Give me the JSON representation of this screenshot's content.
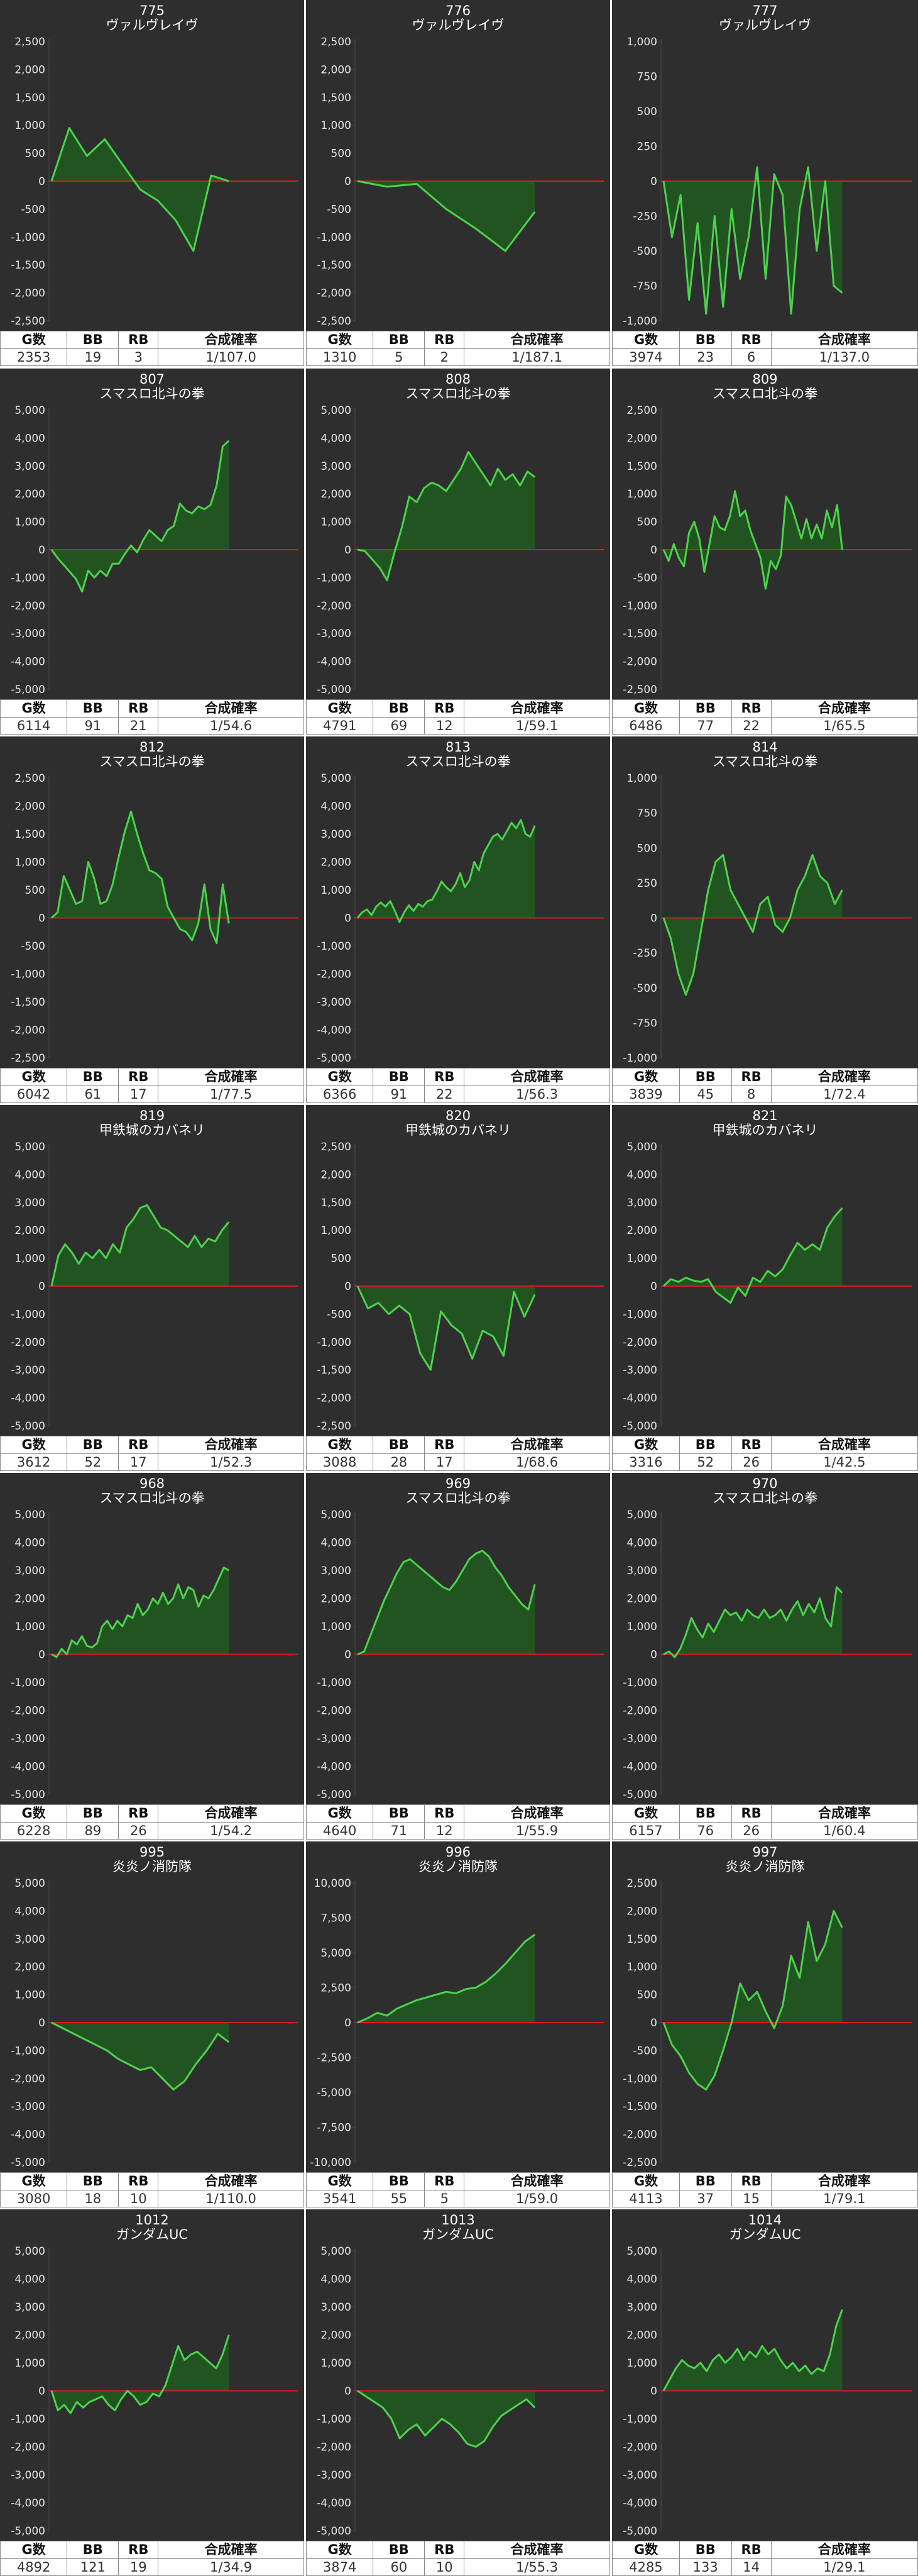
{
  "labels": {
    "games": "G数",
    "bb": "BB",
    "rb": "RB",
    "rate": "合成確率"
  },
  "colors": {
    "background": "#2e2e2e",
    "line": "#4cd24c",
    "fill": "#1f5a1f",
    "zero_line": "#d21e1e",
    "grid": "#4a4a4a",
    "text": "#ffffff"
  },
  "chart_data": [
    {
      "type": "area",
      "number": "775",
      "name": "ヴァルヴレイヴ",
      "ylim": [
        -2500,
        2500
      ],
      "step": 500,
      "stats": {
        "games": "2353",
        "bb": "19",
        "rb": "3",
        "rate": "1/107.0"
      },
      "y": [
        0,
        950,
        450,
        750,
        300,
        -150,
        -350,
        -700,
        -1250,
        100,
        0
      ]
    },
    {
      "type": "area",
      "number": "776",
      "name": "ヴァルヴレイヴ",
      "ylim": [
        -2500,
        2500
      ],
      "step": 500,
      "stats": {
        "games": "1310",
        "bb": "5",
        "rb": "2",
        "rate": "1/187.1"
      },
      "y": [
        0,
        -100,
        -50,
        -500,
        -850,
        -1250,
        -550
      ]
    },
    {
      "type": "area",
      "number": "777",
      "name": "ヴァルヴレイヴ",
      "ylim": [
        -1000,
        1000
      ],
      "step": 250,
      "stats": {
        "games": "3974",
        "bb": "23",
        "rb": "6",
        "rate": "1/137.0"
      },
      "y": [
        0,
        -400,
        -100,
        -850,
        -300,
        -950,
        -250,
        -900,
        -200,
        -700,
        -400,
        100,
        -700,
        50,
        -100,
        -950,
        -200,
        100,
        -500,
        0,
        -750,
        -800
      ]
    },
    {
      "type": "area",
      "number": "807",
      "name": "スマスロ北斗の拳",
      "ylim": [
        -5000,
        5000
      ],
      "step": 1000,
      "stats": {
        "games": "6114",
        "bb": "91",
        "rb": "21",
        "rate": "1/54.6"
      },
      "y": [
        0,
        -300,
        -550,
        -800,
        -1050,
        -1500,
        -750,
        -1000,
        -750,
        -950,
        -500,
        -500,
        -150,
        150,
        -100,
        350,
        700,
        500,
        300,
        700,
        850,
        1650,
        1400,
        1300,
        1550,
        1450,
        1600,
        2300,
        3700,
        3900
      ]
    },
    {
      "type": "area",
      "number": "808",
      "name": "スマスロ北斗の拳",
      "ylim": [
        -5000,
        5000
      ],
      "step": 1000,
      "stats": {
        "games": "4791",
        "bb": "69",
        "rb": "12",
        "rate": "1/59.1"
      },
      "y": [
        0,
        -50,
        -350,
        -650,
        -1100,
        -100,
        800,
        1900,
        1700,
        2200,
        2400,
        2300,
        2100,
        2500,
        2900,
        3500,
        3100,
        2700,
        2300,
        2900,
        2500,
        2700,
        2300,
        2800,
        2600
      ]
    },
    {
      "type": "area",
      "number": "809",
      "name": "スマスロ北斗の拳",
      "ylim": [
        -2500,
        2500
      ],
      "step": 500,
      "stats": {
        "games": "6486",
        "bb": "77",
        "rb": "22",
        "rate": "1/65.5"
      },
      "y": [
        0,
        -200,
        100,
        -150,
        -300,
        300,
        500,
        200,
        -400,
        100,
        600,
        400,
        350,
        600,
        1050,
        600,
        700,
        350,
        100,
        -150,
        -700,
        -200,
        -350,
        -100,
        950,
        800,
        500,
        200,
        550,
        200,
        450,
        200,
        700,
        400,
        800,
        0
      ]
    },
    {
      "type": "area",
      "number": "812",
      "name": "スマスロ北斗の拳",
      "ylim": [
        -2500,
        2500
      ],
      "step": 500,
      "stats": {
        "games": "6042",
        "bb": "61",
        "rb": "17",
        "rate": "1/77.5"
      },
      "y": [
        0,
        100,
        750,
        500,
        250,
        300,
        1000,
        700,
        250,
        300,
        600,
        1100,
        1550,
        1900,
        1500,
        1150,
        850,
        800,
        700,
        200,
        0,
        -200,
        -250,
        -400,
        -100,
        600,
        -200,
        -450,
        600,
        -100
      ]
    },
    {
      "type": "area",
      "number": "813",
      "name": "スマスロ北斗の拳",
      "ylim": [
        -5000,
        5000
      ],
      "step": 1000,
      "stats": {
        "games": "6366",
        "bb": "91",
        "rb": "22",
        "rate": "1/56.3"
      },
      "y": [
        0,
        200,
        300,
        100,
        400,
        550,
        400,
        600,
        250,
        -150,
        200,
        450,
        250,
        500,
        400,
        600,
        650,
        950,
        1300,
        1100,
        950,
        1200,
        1600,
        1100,
        1350,
        2000,
        1700,
        2300,
        2600,
        2900,
        3000,
        2800,
        3100,
        3400,
        3200,
        3500,
        3000,
        2900,
        3300
      ]
    },
    {
      "type": "area",
      "number": "814",
      "name": "スマスロ北斗の拳",
      "ylim": [
        -1000,
        1000
      ],
      "step": 250,
      "stats": {
        "games": "3839",
        "bb": "45",
        "rb": "8",
        "rate": "1/72.4"
      },
      "y": [
        0,
        -150,
        -400,
        -550,
        -400,
        -100,
        200,
        400,
        450,
        200,
        100,
        0,
        -100,
        100,
        150,
        -50,
        -100,
        0,
        200,
        300,
        450,
        300,
        250,
        100,
        200
      ]
    },
    {
      "type": "area",
      "number": "819",
      "name": "甲鉄城のカバネリ",
      "ylim": [
        -5000,
        5000
      ],
      "step": 1000,
      "stats": {
        "games": "3612",
        "bb": "52",
        "rb": "17",
        "rate": "1/52.3"
      },
      "y": [
        0,
        1100,
        1500,
        1200,
        800,
        1200,
        1000,
        1300,
        1000,
        1500,
        1200,
        2100,
        2400,
        2800,
        2900,
        2500,
        2100,
        2000,
        1800,
        1600,
        1400,
        1800,
        1400,
        1700,
        1600,
        2000,
        2300
      ]
    },
    {
      "type": "area",
      "number": "820",
      "name": "甲鉄城のカバネリ",
      "ylim": [
        -2500,
        2500
      ],
      "step": 500,
      "stats": {
        "games": "3088",
        "bb": "28",
        "rb": "17",
        "rate": "1/68.6"
      },
      "y": [
        0,
        -400,
        -300,
        -500,
        -350,
        -500,
        -1200,
        -1500,
        -450,
        -700,
        -850,
        -1300,
        -800,
        -900,
        -1250,
        -100,
        -550,
        -150
      ]
    },
    {
      "type": "area",
      "number": "821",
      "name": "甲鉄城のカバネリ",
      "ylim": [
        -5000,
        5000
      ],
      "step": 1000,
      "stats": {
        "games": "3316",
        "bb": "52",
        "rb": "26",
        "rate": "1/42.5"
      },
      "y": [
        0,
        250,
        150,
        300,
        200,
        150,
        250,
        -200,
        -400,
        -600,
        -50,
        -350,
        300,
        150,
        550,
        350,
        600,
        1100,
        1550,
        1300,
        1500,
        1300,
        2100,
        2500,
        2800
      ]
    },
    {
      "type": "area",
      "number": "968",
      "name": "スマスロ北斗の拳",
      "ylim": [
        -5000,
        5000
      ],
      "step": 1000,
      "stats": {
        "games": "6228",
        "bb": "89",
        "rb": "26",
        "rate": "1/54.2"
      },
      "y": [
        0,
        -100,
        200,
        0,
        500,
        350,
        650,
        300,
        250,
        400,
        1000,
        1200,
        900,
        1200,
        1000,
        1400,
        1300,
        1800,
        1400,
        1600,
        2000,
        1800,
        2200,
        1800,
        2000,
        2500,
        2000,
        2400,
        2300,
        1700,
        2100,
        2000,
        2300,
        2700,
        3100,
        3000
      ]
    },
    {
      "type": "area",
      "number": "969",
      "name": "スマスロ北斗の拳",
      "ylim": [
        -5000,
        5000
      ],
      "step": 1000,
      "stats": {
        "games": "4640",
        "bb": "71",
        "rb": "12",
        "rate": "1/55.9"
      },
      "y": [
        0,
        100,
        700,
        1300,
        1900,
        2400,
        2900,
        3300,
        3400,
        3200,
        3000,
        2800,
        2600,
        2400,
        2300,
        2600,
        3000,
        3400,
        3600,
        3700,
        3500,
        3100,
        2800,
        2400,
        2100,
        1800,
        1600,
        2500
      ]
    },
    {
      "type": "area",
      "number": "970",
      "name": "スマスロ北斗の拳",
      "ylim": [
        -5000,
        5000
      ],
      "step": 1000,
      "stats": {
        "games": "6157",
        "bb": "76",
        "rb": "26",
        "rate": "1/60.4"
      },
      "y": [
        0,
        100,
        -100,
        200,
        700,
        1300,
        900,
        600,
        1100,
        800,
        1200,
        1600,
        1400,
        1500,
        1200,
        1600,
        1400,
        1300,
        1600,
        1300,
        1400,
        1600,
        1200,
        1600,
        1900,
        1400,
        1800,
        1500,
        2000,
        1300,
        1000,
        2400,
        2200
      ]
    },
    {
      "type": "area",
      "number": "995",
      "name": "炎炎ノ消防隊",
      "ylim": [
        -5000,
        5000
      ],
      "step": 1000,
      "stats": {
        "games": "3080",
        "bb": "18",
        "rb": "10",
        "rate": "1/110.0"
      },
      "y": [
        0,
        -200,
        -400,
        -600,
        -800,
        -1000,
        -1300,
        -1500,
        -1700,
        -1600,
        -2000,
        -2400,
        -2100,
        -1500,
        -1000,
        -400,
        -700
      ]
    },
    {
      "type": "area",
      "number": "996",
      "name": "炎炎ノ消防隊",
      "ylim": [
        -10000,
        10000
      ],
      "step": 2500,
      "stats": {
        "games": "3541",
        "bb": "55",
        "rb": "5",
        "rate": "1/59.0"
      },
      "y": [
        0,
        300,
        700,
        500,
        1000,
        1300,
        1600,
        1800,
        2000,
        2200,
        2100,
        2400,
        2500,
        2900,
        3500,
        4200,
        5000,
        5800,
        6300
      ]
    },
    {
      "type": "area",
      "number": "997",
      "name": "炎炎ノ消防隊",
      "ylim": [
        -2500,
        2500
      ],
      "step": 500,
      "stats": {
        "games": "4113",
        "bb": "37",
        "rb": "15",
        "rate": "1/79.1"
      },
      "y": [
        0,
        -400,
        -600,
        -900,
        -1100,
        -1200,
        -950,
        -500,
        0,
        700,
        400,
        550,
        200,
        -100,
        300,
        1200,
        800,
        1800,
        1100,
        1400,
        2000,
        1700
      ]
    },
    {
      "type": "area",
      "number": "1012",
      "name": "ガンダムUC",
      "ylim": [
        -5000,
        5000
      ],
      "step": 1000,
      "stats": {
        "games": "4892",
        "bb": "121",
        "rb": "19",
        "rate": "1/34.9"
      },
      "y": [
        0,
        -700,
        -500,
        -800,
        -400,
        -600,
        -400,
        -300,
        -200,
        -500,
        -700,
        -300,
        0,
        -200,
        -500,
        -400,
        -100,
        -200,
        200,
        900,
        1600,
        1100,
        1300,
        1400,
        1200,
        1000,
        800,
        1300,
        2000
      ]
    },
    {
      "type": "area",
      "number": "1013",
      "name": "ガンダムUC",
      "ylim": [
        -5000,
        5000
      ],
      "step": 1000,
      "stats": {
        "games": "3874",
        "bb": "60",
        "rb": "10",
        "rate": "1/55.3"
      },
      "y": [
        0,
        -200,
        -400,
        -600,
        -1000,
        -1700,
        -1400,
        -1200,
        -1600,
        -1300,
        -1000,
        -1200,
        -1500,
        -1900,
        -2000,
        -1800,
        -1300,
        -900,
        -700,
        -500,
        -300,
        -600
      ]
    },
    {
      "type": "area",
      "number": "1014",
      "name": "ガンダムUC",
      "ylim": [
        -5000,
        5000
      ],
      "step": 1000,
      "stats": {
        "games": "4285",
        "bb": "133",
        "rb": "14",
        "rate": "1/29.1"
      },
      "y": [
        0,
        400,
        800,
        1100,
        900,
        800,
        1000,
        700,
        1100,
        1300,
        1000,
        1200,
        1500,
        1100,
        1400,
        1200,
        1600,
        1300,
        1500,
        1100,
        800,
        1000,
        700,
        900,
        600,
        800,
        700,
        1300,
        2300,
        2900
      ]
    }
  ]
}
